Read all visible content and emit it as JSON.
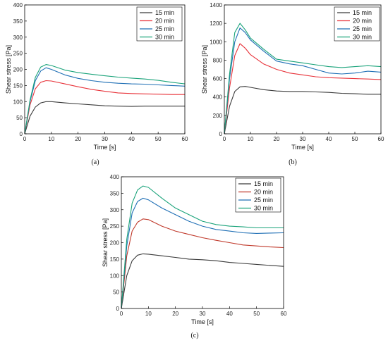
{
  "chart_data": [
    {
      "type": "line",
      "panel_label": "(a)",
      "xlabel": "Time [s]",
      "ylabel": "Shear stress [Pa]",
      "xlim": [
        0,
        60
      ],
      "ylim": [
        0,
        400
      ],
      "xticks": [
        0,
        10,
        20,
        30,
        40,
        50,
        60
      ],
      "yticks": [
        0,
        50,
        100,
        150,
        200,
        250,
        300,
        350,
        400
      ],
      "grid": false,
      "legend": "top-right",
      "series": [
        {
          "name": "15 min",
          "color": "#3a3a3a",
          "x": [
            0,
            2,
            4,
            6,
            8,
            10,
            15,
            20,
            25,
            30,
            35,
            40,
            45,
            50,
            55,
            60
          ],
          "y": [
            0,
            55,
            83,
            96,
            100,
            100,
            96,
            93,
            90,
            87,
            86,
            85,
            86,
            86,
            86,
            86
          ]
        },
        {
          "name": "20 min",
          "color": "#e8333a",
          "x": [
            0,
            2,
            4,
            6,
            8,
            10,
            15,
            20,
            25,
            30,
            35,
            40,
            45,
            50,
            55,
            60
          ],
          "y": [
            0,
            90,
            140,
            160,
            165,
            164,
            155,
            146,
            138,
            132,
            127,
            125,
            124,
            123,
            122,
            122
          ]
        },
        {
          "name": "25 min",
          "color": "#1f6fb5",
          "x": [
            0,
            2,
            4,
            6,
            8,
            10,
            15,
            20,
            25,
            30,
            35,
            40,
            45,
            50,
            55,
            60
          ],
          "y": [
            0,
            100,
            165,
            195,
            205,
            200,
            183,
            172,
            165,
            160,
            157,
            155,
            154,
            152,
            150,
            148
          ]
        },
        {
          "name": "30 min",
          "color": "#1aa37a",
          "x": [
            0,
            2,
            4,
            6,
            8,
            10,
            15,
            20,
            25,
            30,
            35,
            40,
            45,
            50,
            55,
            60
          ],
          "y": [
            0,
            105,
            175,
            207,
            215,
            212,
            198,
            190,
            185,
            180,
            176,
            173,
            170,
            166,
            160,
            155
          ]
        }
      ]
    },
    {
      "type": "line",
      "panel_label": "(b)",
      "xlabel": "Time [s]",
      "ylabel": "Shear stress [Pa]",
      "xlim": [
        0,
        60
      ],
      "ylim": [
        0,
        1400
      ],
      "xticks": [
        0,
        10,
        20,
        30,
        40,
        50,
        60
      ],
      "yticks": [
        0,
        200,
        400,
        600,
        800,
        1000,
        1200,
        1400
      ],
      "grid": false,
      "legend": "top-right",
      "series": [
        {
          "name": "15 min",
          "color": "#3a3a3a",
          "x": [
            0,
            2,
            4,
            6,
            8,
            10,
            15,
            20,
            25,
            30,
            35,
            40,
            45,
            50,
            55,
            60
          ],
          "y": [
            0,
            300,
            460,
            510,
            515,
            505,
            480,
            465,
            460,
            460,
            455,
            450,
            440,
            435,
            430,
            430
          ]
        },
        {
          "name": "20 min",
          "color": "#e8333a",
          "x": [
            0,
            2,
            4,
            6,
            8,
            10,
            15,
            20,
            25,
            30,
            35,
            40,
            45,
            50,
            55,
            60
          ],
          "y": [
            0,
            500,
            850,
            980,
            930,
            860,
            760,
            700,
            660,
            640,
            620,
            610,
            605,
            600,
            595,
            590
          ]
        },
        {
          "name": "25 min",
          "color": "#1f6fb5",
          "x": [
            0,
            2,
            4,
            6,
            8,
            10,
            15,
            20,
            25,
            30,
            35,
            40,
            45,
            50,
            55,
            60
          ],
          "y": [
            0,
            600,
            1000,
            1150,
            1100,
            1020,
            900,
            790,
            760,
            740,
            700,
            660,
            650,
            660,
            680,
            670
          ]
        },
        {
          "name": "30 min",
          "color": "#1aa37a",
          "x": [
            0,
            2,
            4,
            6,
            8,
            10,
            15,
            20,
            25,
            30,
            35,
            40,
            45,
            50,
            55,
            60
          ],
          "y": [
            0,
            650,
            1100,
            1200,
            1130,
            1040,
            920,
            810,
            790,
            770,
            750,
            730,
            720,
            730,
            740,
            730
          ]
        }
      ]
    },
    {
      "type": "line",
      "panel_label": "(c)",
      "xlabel": "Time [s]",
      "ylabel": "Shear stress [Pa]",
      "xlim": [
        0,
        60
      ],
      "ylim": [
        0,
        400
      ],
      "xticks": [
        0,
        10,
        20,
        30,
        40,
        50,
        60
      ],
      "yticks": [
        0,
        50,
        100,
        150,
        200,
        250,
        300,
        350,
        400
      ],
      "grid": false,
      "legend": "top-right",
      "series": [
        {
          "name": "15 min",
          "color": "#3a3a3a",
          "x": [
            0,
            2,
            4,
            6,
            8,
            10,
            15,
            20,
            25,
            30,
            35,
            40,
            45,
            50,
            55,
            60
          ],
          "y": [
            0,
            100,
            145,
            162,
            166,
            165,
            160,
            155,
            150,
            148,
            145,
            140,
            137,
            134,
            131,
            128
          ]
        },
        {
          "name": "20 min",
          "color": "#c0392b",
          "x": [
            0,
            2,
            4,
            6,
            8,
            10,
            15,
            20,
            25,
            30,
            35,
            40,
            45,
            50,
            55,
            60
          ],
          "y": [
            0,
            160,
            235,
            262,
            272,
            270,
            250,
            235,
            225,
            215,
            207,
            200,
            193,
            190,
            187,
            185
          ]
        },
        {
          "name": "25 min",
          "color": "#1f6fb5",
          "x": [
            0,
            2,
            4,
            6,
            8,
            10,
            15,
            20,
            25,
            30,
            35,
            40,
            45,
            50,
            55,
            60
          ],
          "y": [
            0,
            190,
            290,
            325,
            335,
            330,
            305,
            285,
            265,
            250,
            240,
            235,
            230,
            228,
            229,
            230
          ]
        },
        {
          "name": "30 min",
          "color": "#1aa37a",
          "x": [
            0,
            2,
            4,
            6,
            8,
            10,
            15,
            20,
            25,
            30,
            35,
            40,
            45,
            50,
            55,
            60
          ],
          "y": [
            0,
            210,
            320,
            360,
            372,
            368,
            335,
            305,
            285,
            265,
            255,
            250,
            248,
            245,
            245,
            245
          ]
        }
      ]
    }
  ]
}
